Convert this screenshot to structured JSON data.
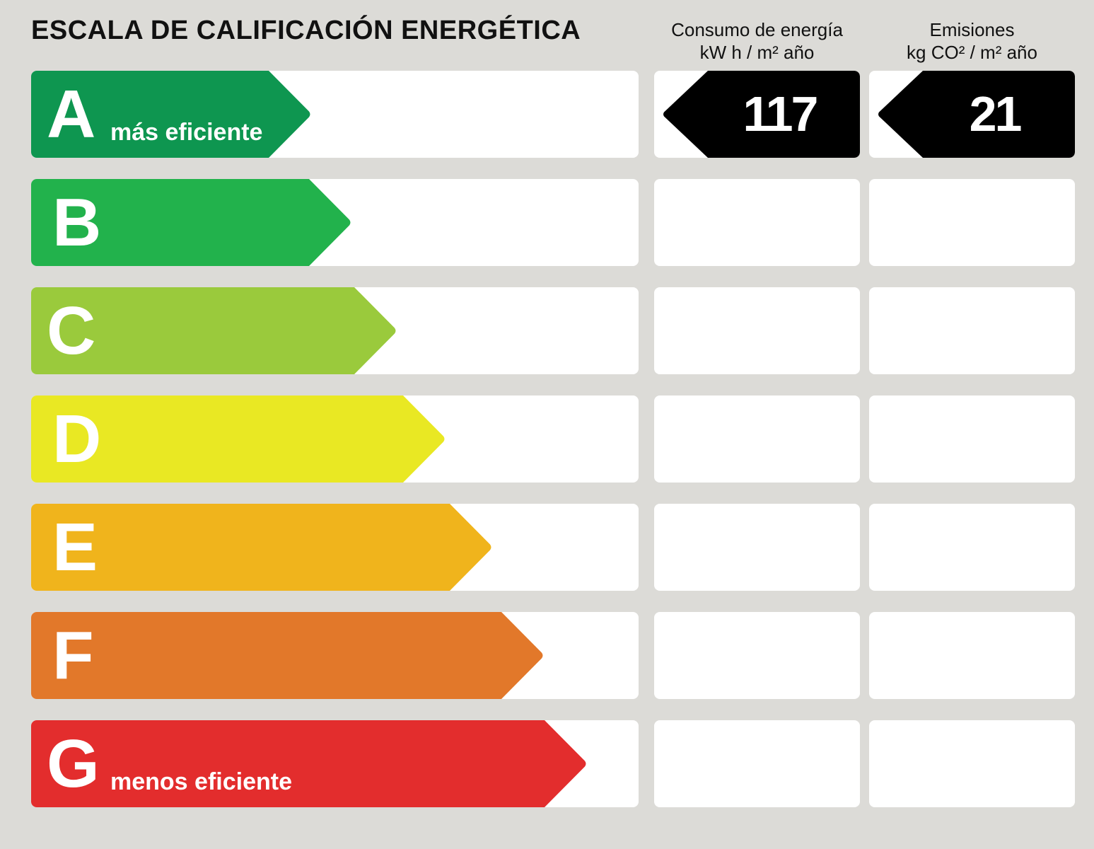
{
  "title": "ESCALA DE CALIFICACIÓN ENERGÉTICA",
  "headers": {
    "energy": {
      "line1": "Consumo de energía",
      "line2": "kW h / m² año"
    },
    "emissions": {
      "line1": "Emisiones",
      "line2": "kg CO² / m² año"
    }
  },
  "ratings": [
    {
      "letter": "A",
      "color": "#0e9650",
      "sublabel": "más eficiente"
    },
    {
      "letter": "B",
      "color": "#22b24c",
      "sublabel": ""
    },
    {
      "letter": "C",
      "color": "#9aca3c",
      "sublabel": ""
    },
    {
      "letter": "D",
      "color": "#e9e823",
      "sublabel": ""
    },
    {
      "letter": "E",
      "color": "#f0b41c",
      "sublabel": ""
    },
    {
      "letter": "F",
      "color": "#e2782a",
      "sublabel": ""
    },
    {
      "letter": "G",
      "color": "#e32d2d",
      "sublabel": "menos eficiente"
    }
  ],
  "result": {
    "rating": "A",
    "energy_value": "117",
    "emissions_value": "21"
  },
  "indicator_color": "#000000"
}
